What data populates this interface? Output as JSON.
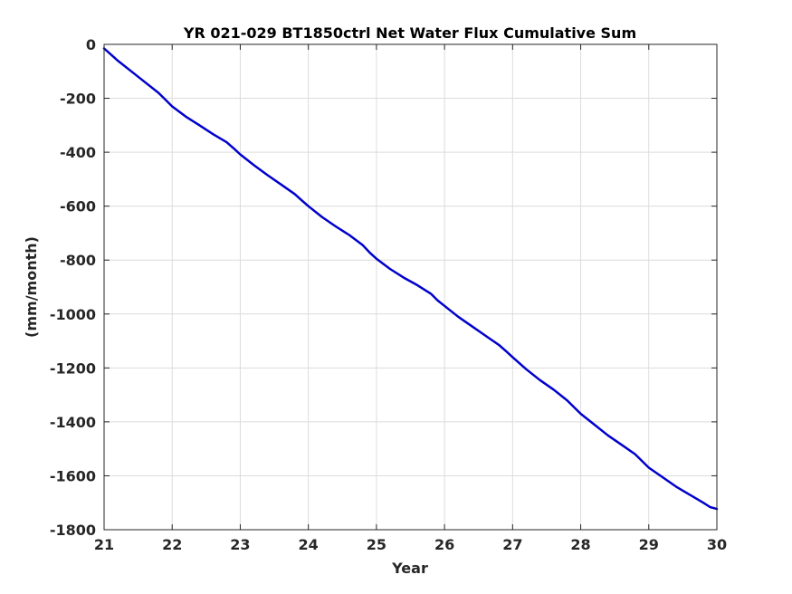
{
  "chart_data": {
    "type": "line",
    "title": "YR 021-029 BT1850ctrl Net Water Flux Cumulative Sum",
    "xlabel": "Year",
    "ylabel": "(mm/month)",
    "xlim": [
      21,
      30
    ],
    "ylim": [
      -1800,
      0
    ],
    "xticks": [
      21,
      22,
      23,
      24,
      25,
      26,
      27,
      28,
      29,
      30
    ],
    "yticks": [
      0,
      -200,
      -400,
      -600,
      -800,
      -1000,
      -1200,
      -1400,
      -1600,
      -1800
    ],
    "grid": true,
    "line_color": "#0000cc",
    "series": [
      {
        "x": [
          21.0,
          21.2,
          21.4,
          21.6,
          21.8,
          21.9,
          22.0,
          22.2,
          22.4,
          22.6,
          22.8,
          22.9,
          23.0,
          23.2,
          23.4,
          23.6,
          23.8,
          23.9,
          24.0,
          24.2,
          24.4,
          24.6,
          24.8,
          24.9,
          25.0,
          25.2,
          25.4,
          25.6,
          25.8,
          25.9,
          26.0,
          26.2,
          26.4,
          26.6,
          26.8,
          26.9,
          27.0,
          27.2,
          27.4,
          27.6,
          27.8,
          27.9,
          28.0,
          28.2,
          28.4,
          28.6,
          28.8,
          28.9,
          29.0,
          29.2,
          29.4,
          29.6,
          29.8,
          29.9,
          30.0
        ],
        "y": [
          -15,
          -60,
          -100,
          -140,
          -180,
          -205,
          -230,
          -268,
          -300,
          -333,
          -363,
          -385,
          -408,
          -448,
          -485,
          -520,
          -555,
          -578,
          -600,
          -640,
          -675,
          -707,
          -745,
          -772,
          -795,
          -833,
          -865,
          -893,
          -925,
          -950,
          -970,
          -1010,
          -1045,
          -1080,
          -1115,
          -1137,
          -1160,
          -1205,
          -1245,
          -1280,
          -1320,
          -1345,
          -1370,
          -1410,
          -1450,
          -1485,
          -1520,
          -1545,
          -1570,
          -1605,
          -1640,
          -1670,
          -1700,
          -1716,
          -1723
        ]
      }
    ]
  }
}
